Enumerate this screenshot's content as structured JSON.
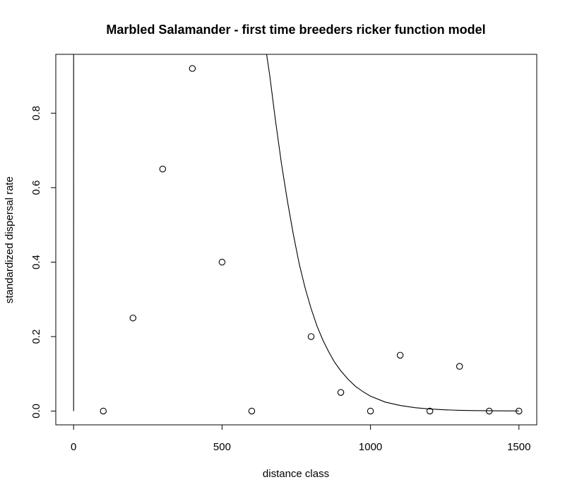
{
  "chart_data": {
    "type": "scatter",
    "title": "Marbled Salamander - first time breeders ricker function model",
    "xlabel": "distance class",
    "ylabel": "standardized dispersal rate",
    "xlim": [
      -60,
      1560
    ],
    "ylim": [
      -0.037,
      0.958
    ],
    "x_ticks": [
      0,
      500,
      1000,
      1500
    ],
    "x_tick_labels": [
      "0",
      "500",
      "1000",
      "1500"
    ],
    "y_ticks": [
      0.0,
      0.2,
      0.4,
      0.6,
      0.8
    ],
    "y_tick_labels": [
      "0.0",
      "0.2",
      "0.4",
      "0.6",
      "0.8"
    ],
    "grid": false,
    "points": [
      {
        "x": 100,
        "y": 0.0
      },
      {
        "x": 200,
        "y": 0.25
      },
      {
        "x": 300,
        "y": 0.65
      },
      {
        "x": 400,
        "y": 0.92
      },
      {
        "x": 500,
        "y": 0.4
      },
      {
        "x": 600,
        "y": 0.0
      },
      {
        "x": 800,
        "y": 0.2
      },
      {
        "x": 900,
        "y": 0.05
      },
      {
        "x": 1000,
        "y": 0.0
      },
      {
        "x": 1100,
        "y": 0.15
      },
      {
        "x": 1200,
        "y": 0.0
      },
      {
        "x": 1300,
        "y": 0.12
      },
      {
        "x": 1400,
        "y": 0.0
      },
      {
        "x": 1500,
        "y": 0.0
      }
    ],
    "fit_curve": {
      "model": "ricker",
      "x": [
        0,
        0.03,
        650,
        660,
        680,
        700,
        720,
        740,
        760,
        780,
        800,
        820,
        840,
        860,
        880,
        900,
        925,
        950,
        975,
        1000,
        1050,
        1100,
        1150,
        1200,
        1250,
        1300,
        1350,
        1400,
        1450,
        1500
      ],
      "y": [
        0.0,
        0.96,
        0.958,
        0.905,
        0.78,
        0.665,
        0.565,
        0.475,
        0.395,
        0.33,
        0.275,
        0.228,
        0.19,
        0.158,
        0.13,
        0.108,
        0.085,
        0.066,
        0.052,
        0.04,
        0.024,
        0.015,
        0.009,
        0.0055,
        0.0034,
        0.002,
        0.0012,
        0.0008,
        0.0005,
        0.0003
      ]
    }
  }
}
